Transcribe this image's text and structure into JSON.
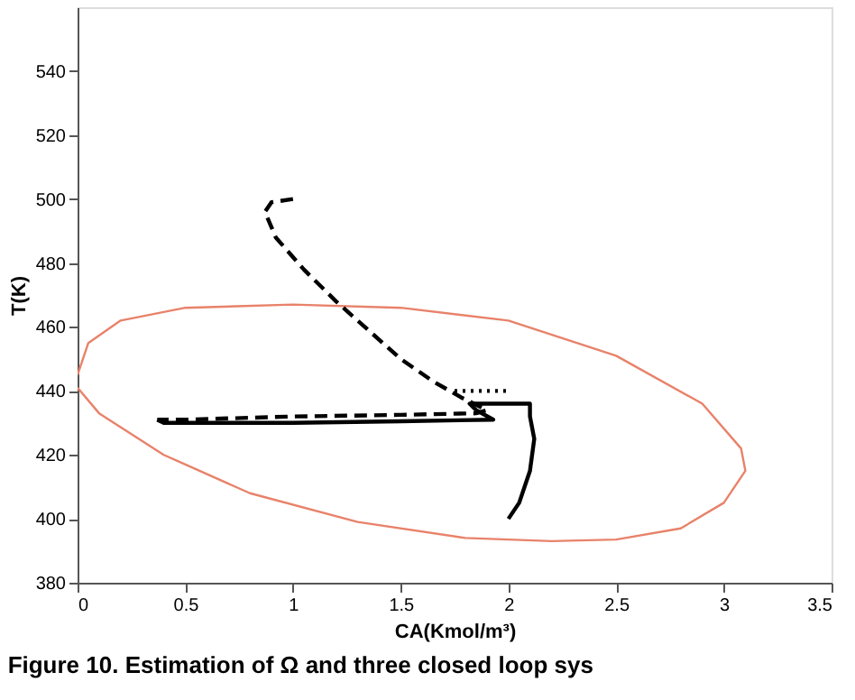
{
  "chart_data": {
    "type": "line",
    "xlabel": "CA(Kmol/m³)",
    "ylabel": "T(K)",
    "xlim": [
      0,
      3.5
    ],
    "xticks": [
      0,
      0.5,
      1,
      1.5,
      2,
      2.5,
      3,
      3.5
    ],
    "ylim": [
      380,
      560
    ],
    "yticks": [
      380,
      400,
      420,
      440,
      460,
      480,
      500,
      520,
      540
    ],
    "grid": false,
    "annotations": [
      "Figure 10. Estimation of Ω and three closed loop sys"
    ],
    "series": [
      {
        "color": "#e8826a",
        "line_style": "solid",
        "x": [
          0.0,
          0.05,
          0.2,
          0.5,
          1.0,
          1.5,
          2.0,
          2.5,
          2.9,
          3.08,
          3.1,
          3.0,
          2.8,
          2.5,
          2.2,
          1.8,
          1.3,
          0.8,
          0.4,
          0.1,
          0.0
        ],
        "values": [
          445,
          455,
          462,
          466,
          467,
          466,
          462,
          451,
          436,
          422,
          415,
          405,
          397,
          393.5,
          393,
          394,
          399,
          408,
          420,
          433,
          441
        ]
      },
      {
        "color": "#000000",
        "line_style": "dashed",
        "x": [
          1.0,
          0.9,
          0.87,
          0.92,
          1.05,
          1.2,
          1.35,
          1.5,
          1.65,
          1.78,
          1.9,
          1.85,
          1.5,
          1.0,
          0.5,
          0.37
        ],
        "values": [
          500,
          499,
          496,
          488,
          478,
          468,
          459,
          450,
          443,
          438,
          434,
          433,
          432.5,
          432,
          431,
          431
        ]
      },
      {
        "color": "#000000",
        "line_style": "dotted",
        "x": [
          1.75,
          2.0
        ],
        "values": [
          440,
          440
        ]
      },
      {
        "color": "#000000",
        "line_style": "solid",
        "x": [
          0.37,
          0.4,
          1.0,
          1.5,
          1.93,
          1.85,
          1.82,
          2.1,
          2.1,
          2.12,
          2.1,
          2.05,
          2.0
        ],
        "values": [
          431,
          430,
          430,
          430.5,
          431,
          434,
          436,
          436,
          432,
          425,
          415,
          405,
          400
        ]
      }
    ]
  }
}
